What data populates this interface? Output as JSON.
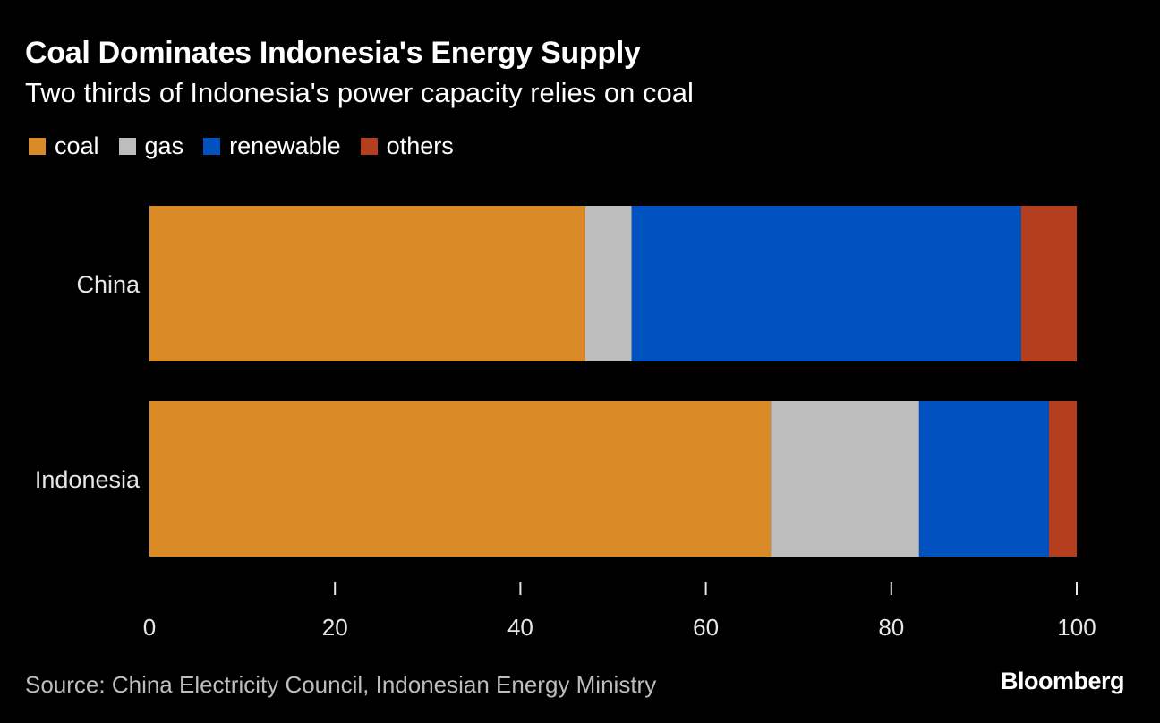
{
  "title": "Coal Dominates Indonesia's Energy Supply",
  "subtitle": "Two thirds of Indonesia's power capacity relies on coal",
  "source": "Source: China Electricity Council, Indonesian Energy Ministry",
  "brand": "Bloomberg",
  "chart_data": {
    "type": "bar",
    "orientation": "horizontal",
    "stacked": true,
    "title": "Coal Dominates Indonesia's Energy Supply",
    "subtitle": "Two thirds of Indonesia's power capacity relies on coal",
    "categories": [
      "China",
      "Indonesia"
    ],
    "series": [
      {
        "name": "coal",
        "color": "#d98a26",
        "values": [
          47,
          67
        ]
      },
      {
        "name": "gas",
        "color": "#bdbdbd",
        "values": [
          5,
          16
        ]
      },
      {
        "name": "renewable",
        "color": "#0052c0",
        "values": [
          42,
          14
        ]
      },
      {
        "name": "others",
        "color": "#b33f1e",
        "values": [
          6,
          3
        ]
      }
    ],
    "xlim": [
      0,
      100
    ],
    "xticks": [
      0,
      20,
      40,
      60,
      80,
      100
    ],
    "xlabel": "",
    "ylabel": "",
    "grid": false,
    "legend": "top-left"
  }
}
